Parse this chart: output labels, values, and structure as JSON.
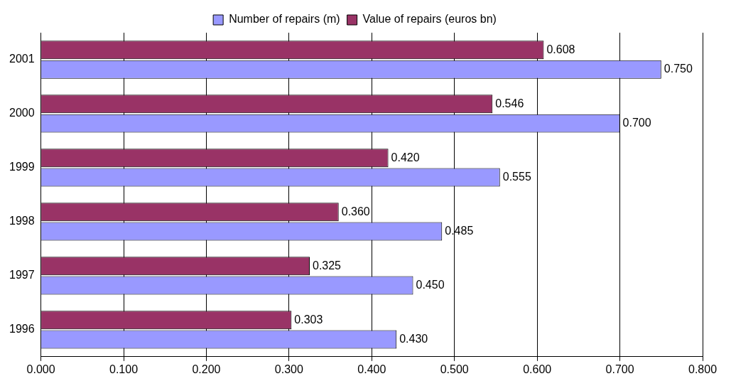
{
  "chart_data": {
    "type": "bar",
    "orientation": "horizontal",
    "categories": [
      "2001",
      "2000",
      "1999",
      "1998",
      "1997",
      "1996"
    ],
    "series": [
      {
        "name": "Number of repairs (m)",
        "color": "#9999ff",
        "values": [
          0.75,
          0.7,
          0.555,
          0.485,
          0.45,
          0.43
        ],
        "value_labels": [
          "0.750",
          "0.700",
          "0.555",
          "0.485",
          "0.450",
          "0.430"
        ]
      },
      {
        "name": "Value of repairs (euros bn)",
        "color": "#993366",
        "values": [
          0.608,
          0.546,
          0.42,
          0.36,
          0.325,
          0.303
        ],
        "value_labels": [
          "0.608",
          "0.546",
          "0.420",
          "0.360",
          "0.325",
          "0.303"
        ]
      }
    ],
    "xlim": [
      0,
      0.8
    ],
    "xticks": [
      {
        "value": 0,
        "label": "0.000"
      },
      {
        "value": 0.1,
        "label": "0.100"
      },
      {
        "value": 0.2,
        "label": "0.200"
      },
      {
        "value": 0.3,
        "label": "0.300"
      },
      {
        "value": 0.4,
        "label": "0.400"
      },
      {
        "value": 0.5,
        "label": "0.500"
      },
      {
        "value": 0.6,
        "label": "0.600"
      },
      {
        "value": 0.7,
        "label": "0.700"
      },
      {
        "value": 0.8,
        "label": "0.800"
      }
    ],
    "grid": "x",
    "legend": "top"
  }
}
